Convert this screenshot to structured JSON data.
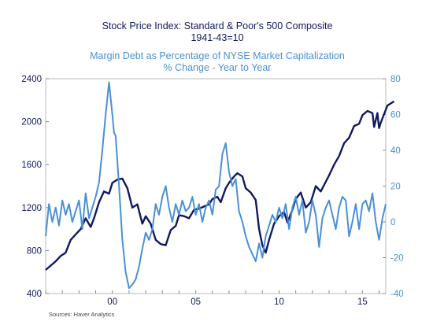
{
  "chart_data": {
    "type": "line",
    "title": "Stock Price Index: Standard & Poor's 500 Composite",
    "title_line2": "1941-43=10",
    "subtitle": "Margin Debt as Percentage of NYSE Market Capitalization",
    "subtitle_line2": "% Change - Year to Year",
    "source": "Sources:  Haver Analytics",
    "x_tick_labels": [
      "00",
      "05",
      "10",
      "15"
    ],
    "x_ticks": [
      2000,
      2005,
      2010,
      2015
    ],
    "xlim": [
      1996.0,
      2016.4
    ],
    "left_axis": {
      "ylim": [
        400,
        2400
      ],
      "ticks": [
        400,
        800,
        1200,
        1600,
        2000,
        2400
      ],
      "color": "#101a5e"
    },
    "right_axis": {
      "ylim": [
        -40,
        80
      ],
      "ticks": [
        -40,
        -20,
        0,
        20,
        40,
        60,
        80
      ],
      "color": "#4a90d6"
    },
    "grid": false,
    "legend": "none",
    "series": [
      {
        "axis": "left",
        "color": "#101a5e",
        "points": [
          [
            1996.0,
            620
          ],
          [
            1996.3,
            660
          ],
          [
            1996.6,
            700
          ],
          [
            1996.9,
            750
          ],
          [
            1997.2,
            780
          ],
          [
            1997.5,
            900
          ],
          [
            1997.8,
            950
          ],
          [
            1998.1,
            1000
          ],
          [
            1998.4,
            1100
          ],
          [
            1998.7,
            1020
          ],
          [
            1998.9,
            1100
          ],
          [
            1999.2,
            1250
          ],
          [
            1999.5,
            1350
          ],
          [
            1999.8,
            1330
          ],
          [
            2000.0,
            1430
          ],
          [
            2000.3,
            1460
          ],
          [
            2000.6,
            1470
          ],
          [
            2000.9,
            1380
          ],
          [
            2001.2,
            1200
          ],
          [
            2001.5,
            1230
          ],
          [
            2001.8,
            1050
          ],
          [
            2002.0,
            1120
          ],
          [
            2002.3,
            1050
          ],
          [
            2002.6,
            900
          ],
          [
            2002.9,
            860
          ],
          [
            2003.2,
            850
          ],
          [
            2003.5,
            990
          ],
          [
            2003.8,
            1030
          ],
          [
            2004.0,
            1130
          ],
          [
            2004.3,
            1120
          ],
          [
            2004.6,
            1100
          ],
          [
            2004.9,
            1180
          ],
          [
            2005.2,
            1190
          ],
          [
            2005.5,
            1210
          ],
          [
            2005.8,
            1230
          ],
          [
            2006.0,
            1280
          ],
          [
            2006.3,
            1300
          ],
          [
            2006.5,
            1250
          ],
          [
            2006.8,
            1380
          ],
          [
            2007.0,
            1430
          ],
          [
            2007.3,
            1490
          ],
          [
            2007.5,
            1520
          ],
          [
            2007.8,
            1490
          ],
          [
            2008.0,
            1380
          ],
          [
            2008.3,
            1340
          ],
          [
            2008.6,
            1270
          ],
          [
            2008.8,
            1000
          ],
          [
            2009.0,
            850
          ],
          [
            2009.2,
            780
          ],
          [
            2009.4,
            900
          ],
          [
            2009.7,
            1050
          ],
          [
            2010.0,
            1120
          ],
          [
            2010.3,
            1160
          ],
          [
            2010.5,
            1060
          ],
          [
            2010.8,
            1180
          ],
          [
            2011.0,
            1280
          ],
          [
            2011.3,
            1340
          ],
          [
            2011.6,
            1200
          ],
          [
            2011.9,
            1250
          ],
          [
            2012.2,
            1400
          ],
          [
            2012.5,
            1350
          ],
          [
            2012.8,
            1440
          ],
          [
            2013.0,
            1500
          ],
          [
            2013.3,
            1600
          ],
          [
            2013.6,
            1680
          ],
          [
            2013.9,
            1800
          ],
          [
            2014.2,
            1850
          ],
          [
            2014.5,
            1960
          ],
          [
            2014.8,
            1980
          ],
          [
            2015.0,
            2060
          ],
          [
            2015.3,
            2100
          ],
          [
            2015.6,
            2080
          ],
          [
            2015.7,
            1950
          ],
          [
            2015.9,
            2080
          ],
          [
            2016.0,
            1940
          ],
          [
            2016.1,
            1990
          ],
          [
            2016.3,
            2070
          ],
          [
            2016.5,
            2150
          ],
          [
            2016.7,
            2170
          ],
          [
            2016.9,
            2190
          ]
        ]
      },
      {
        "axis": "right",
        "color": "#4a90d6",
        "points": [
          [
            1996.0,
            -8
          ],
          [
            1996.2,
            10
          ],
          [
            1996.4,
            0
          ],
          [
            1996.6,
            8
          ],
          [
            1996.8,
            -2
          ],
          [
            1997.0,
            12
          ],
          [
            1997.2,
            4
          ],
          [
            1997.4,
            10
          ],
          [
            1997.6,
            0
          ],
          [
            1997.8,
            6
          ],
          [
            1998.0,
            12
          ],
          [
            1998.2,
            -4
          ],
          [
            1998.4,
            16
          ],
          [
            1998.6,
            2
          ],
          [
            1998.8,
            8
          ],
          [
            1999.0,
            14
          ],
          [
            1999.2,
            22
          ],
          [
            1999.4,
            40
          ],
          [
            1999.6,
            60
          ],
          [
            1999.8,
            78
          ],
          [
            2000.0,
            60
          ],
          [
            2000.1,
            50
          ],
          [
            2000.2,
            48
          ],
          [
            2000.4,
            20
          ],
          [
            2000.6,
            -10
          ],
          [
            2000.8,
            -28
          ],
          [
            2001.0,
            -37
          ],
          [
            2001.2,
            -35
          ],
          [
            2001.4,
            -32
          ],
          [
            2001.6,
            -25
          ],
          [
            2001.8,
            -15
          ],
          [
            2002.0,
            -6
          ],
          [
            2002.2,
            -10
          ],
          [
            2002.4,
            -4
          ],
          [
            2002.6,
            10
          ],
          [
            2002.8,
            4
          ],
          [
            2003.0,
            14
          ],
          [
            2003.2,
            20
          ],
          [
            2003.4,
            8
          ],
          [
            2003.6,
            0
          ],
          [
            2003.8,
            10
          ],
          [
            2004.0,
            4
          ],
          [
            2004.2,
            12
          ],
          [
            2004.4,
            6
          ],
          [
            2004.6,
            8
          ],
          [
            2004.8,
            14
          ],
          [
            2005.0,
            4
          ],
          [
            2005.2,
            10
          ],
          [
            2005.4,
            0
          ],
          [
            2005.6,
            8
          ],
          [
            2005.8,
            12
          ],
          [
            2006.0,
            4
          ],
          [
            2006.2,
            18
          ],
          [
            2006.4,
            20
          ],
          [
            2006.6,
            38
          ],
          [
            2006.8,
            44
          ],
          [
            2007.0,
            28
          ],
          [
            2007.2,
            20
          ],
          [
            2007.4,
            24
          ],
          [
            2007.6,
            6
          ],
          [
            2007.8,
            0
          ],
          [
            2008.0,
            -8
          ],
          [
            2008.2,
            -14
          ],
          [
            2008.4,
            -18
          ],
          [
            2008.6,
            -22
          ],
          [
            2008.8,
            -12
          ],
          [
            2009.0,
            -20
          ],
          [
            2009.2,
            -8
          ],
          [
            2009.4,
            -2
          ],
          [
            2009.6,
            4
          ],
          [
            2009.8,
            0
          ],
          [
            2010.0,
            8
          ],
          [
            2010.2,
            2
          ],
          [
            2010.4,
            10
          ],
          [
            2010.6,
            -4
          ],
          [
            2010.8,
            8
          ],
          [
            2011.0,
            14
          ],
          [
            2011.2,
            4
          ],
          [
            2011.4,
            12
          ],
          [
            2011.6,
            -6
          ],
          [
            2011.8,
            0
          ],
          [
            2012.0,
            12
          ],
          [
            2012.2,
            4
          ],
          [
            2012.4,
            -14
          ],
          [
            2012.6,
            2
          ],
          [
            2012.8,
            8
          ],
          [
            2013.0,
            12
          ],
          [
            2013.2,
            4
          ],
          [
            2013.4,
            -4
          ],
          [
            2013.6,
            8
          ],
          [
            2013.8,
            14
          ],
          [
            2014.0,
            12
          ],
          [
            2014.2,
            -8
          ],
          [
            2014.4,
            0
          ],
          [
            2014.6,
            10
          ],
          [
            2014.8,
            -4
          ],
          [
            2015.0,
            10
          ],
          [
            2015.2,
            12
          ],
          [
            2015.4,
            6
          ],
          [
            2015.6,
            16
          ],
          [
            2015.8,
            0
          ],
          [
            2016.0,
            -10
          ],
          [
            2016.2,
            2
          ],
          [
            2016.4,
            10
          ]
        ]
      }
    ]
  }
}
